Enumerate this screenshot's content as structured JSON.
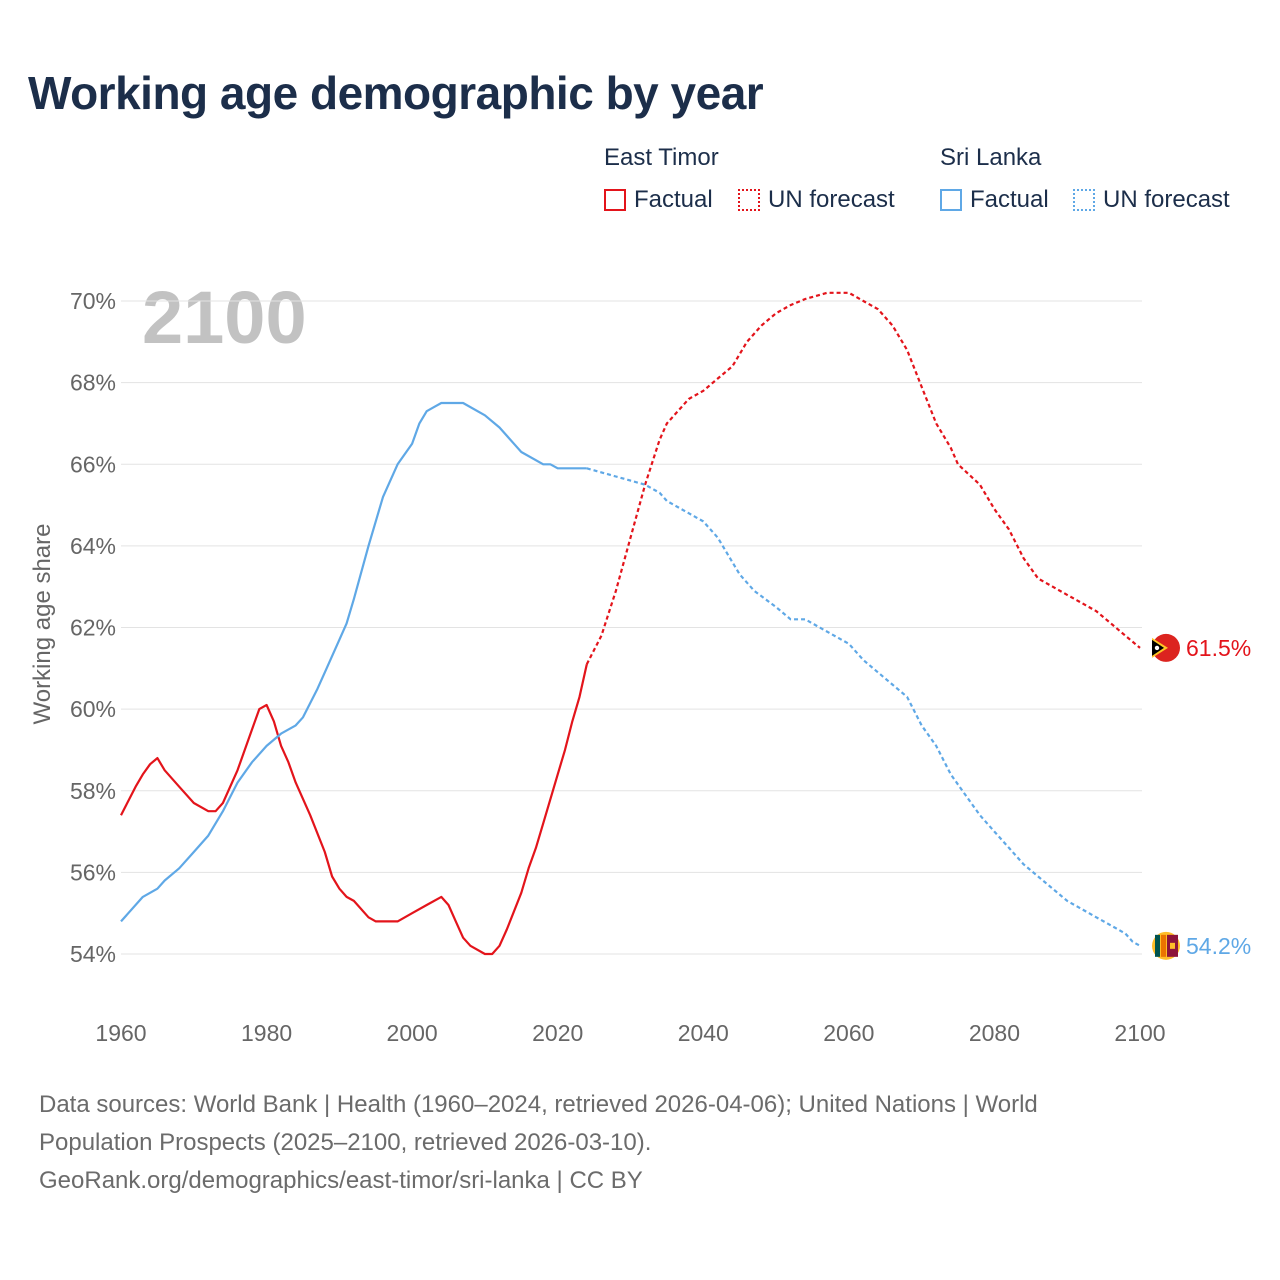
{
  "title": "Working age demographic by year",
  "legend": {
    "groups": [
      {
        "name": "East Timor",
        "color": "#e3141b",
        "factual_label": "Factual",
        "forecast_label": "UN forecast"
      },
      {
        "name": "Sri Lanka",
        "color": "#5fa8e6",
        "factual_label": "Factual",
        "forecast_label": "UN forecast"
      }
    ]
  },
  "footer": {
    "line1": "Data sources: World Bank | Health (1960–2024, retrieved 2026-04-06); United Nations | World",
    "line2": "Population Prospects (2025–2100, retrieved 2026-03-10).",
    "line3": "GeoRank.org/demographics/east-timor/sri-lanka | CC BY"
  },
  "chart_data": {
    "type": "line",
    "title": "Working age demographic by year",
    "year_watermark": "2100",
    "xlabel": "",
    "ylabel": "Working age share",
    "xlim": [
      1960,
      2100
    ],
    "ylim": [
      54,
      70
    ],
    "xticks": [
      1960,
      1980,
      2000,
      2020,
      2040,
      2060,
      2080,
      2100
    ],
    "yticks": [
      54,
      56,
      58,
      60,
      62,
      64,
      66,
      68,
      70
    ],
    "x_tick_labels": [
      "1960",
      "1980",
      "2000",
      "2020",
      "2040",
      "2060",
      "2080",
      "2100"
    ],
    "y_tick_labels": [
      "54%",
      "56%",
      "58%",
      "60%",
      "62%",
      "64%",
      "66%",
      "68%",
      "70%"
    ],
    "grid": true,
    "factual_until": 2024,
    "series": [
      {
        "name": "East Timor",
        "color": "#e3141b",
        "end_label": "61.5%",
        "points": [
          [
            1960,
            57.4
          ],
          [
            1962,
            58.1
          ],
          [
            1963,
            58.4
          ],
          [
            1964,
            58.65
          ],
          [
            1965,
            58.8
          ],
          [
            1966,
            58.5
          ],
          [
            1968,
            58.1
          ],
          [
            1970,
            57.7
          ],
          [
            1972,
            57.5
          ],
          [
            1973,
            57.5
          ],
          [
            1974,
            57.7
          ],
          [
            1976,
            58.5
          ],
          [
            1978,
            59.5
          ],
          [
            1979,
            60.0
          ],
          [
            1980,
            60.1
          ],
          [
            1981,
            59.7
          ],
          [
            1982,
            59.1
          ],
          [
            1983,
            58.7
          ],
          [
            1984,
            58.2
          ],
          [
            1986,
            57.4
          ],
          [
            1988,
            56.5
          ],
          [
            1989,
            55.9
          ],
          [
            1990,
            55.6
          ],
          [
            1991,
            55.4
          ],
          [
            1992,
            55.3
          ],
          [
            1994,
            54.9
          ],
          [
            1995,
            54.8
          ],
          [
            1998,
            54.8
          ],
          [
            2000,
            55.0
          ],
          [
            2002,
            55.2
          ],
          [
            2004,
            55.4
          ],
          [
            2005,
            55.2
          ],
          [
            2006,
            54.8
          ],
          [
            2007,
            54.4
          ],
          [
            2008,
            54.2
          ],
          [
            2010,
            54.0
          ],
          [
            2011,
            54.0
          ],
          [
            2012,
            54.2
          ],
          [
            2013,
            54.6
          ],
          [
            2015,
            55.5
          ],
          [
            2016,
            56.1
          ],
          [
            2017,
            56.6
          ],
          [
            2018,
            57.2
          ],
          [
            2020,
            58.4
          ],
          [
            2021,
            59.0
          ],
          [
            2022,
            59.7
          ],
          [
            2023,
            60.3
          ],
          [
            2024,
            61.1
          ],
          [
            2026,
            61.8
          ],
          [
            2028,
            62.9
          ],
          [
            2030,
            64.2
          ],
          [
            2032,
            65.5
          ],
          [
            2034,
            66.6
          ],
          [
            2035,
            67.0
          ],
          [
            2037,
            67.4
          ],
          [
            2038,
            67.6
          ],
          [
            2040,
            67.8
          ],
          [
            2042,
            68.1
          ],
          [
            2044,
            68.4
          ],
          [
            2046,
            69.0
          ],
          [
            2048,
            69.4
          ],
          [
            2050,
            69.7
          ],
          [
            2052,
            69.9
          ],
          [
            2054,
            70.05
          ],
          [
            2056,
            70.15
          ],
          [
            2057,
            70.2
          ],
          [
            2060,
            70.2
          ],
          [
            2062,
            70.0
          ],
          [
            2064,
            69.8
          ],
          [
            2066,
            69.4
          ],
          [
            2068,
            68.8
          ],
          [
            2070,
            67.9
          ],
          [
            2072,
            67.0
          ],
          [
            2074,
            66.4
          ],
          [
            2075,
            66.0
          ],
          [
            2078,
            65.5
          ],
          [
            2080,
            64.9
          ],
          [
            2082,
            64.4
          ],
          [
            2084,
            63.7
          ],
          [
            2086,
            63.2
          ],
          [
            2088,
            63.0
          ],
          [
            2090,
            62.8
          ],
          [
            2092,
            62.6
          ],
          [
            2094,
            62.4
          ],
          [
            2096,
            62.1
          ],
          [
            2098,
            61.8
          ],
          [
            2100,
            61.5
          ]
        ]
      },
      {
        "name": "Sri Lanka",
        "color": "#5fa8e6",
        "end_label": "54.2%",
        "points": [
          [
            1960,
            54.8
          ],
          [
            1963,
            55.4
          ],
          [
            1965,
            55.6
          ],
          [
            1966,
            55.8
          ],
          [
            1968,
            56.1
          ],
          [
            1970,
            56.5
          ],
          [
            1972,
            56.9
          ],
          [
            1974,
            57.5
          ],
          [
            1976,
            58.2
          ],
          [
            1978,
            58.7
          ],
          [
            1980,
            59.1
          ],
          [
            1982,
            59.4
          ],
          [
            1984,
            59.6
          ],
          [
            1985,
            59.8
          ],
          [
            1987,
            60.5
          ],
          [
            1988,
            60.9
          ],
          [
            1990,
            61.7
          ],
          [
            1991,
            62.1
          ],
          [
            1992,
            62.7
          ],
          [
            1994,
            64.0
          ],
          [
            1996,
            65.2
          ],
          [
            1998,
            66.0
          ],
          [
            2000,
            66.5
          ],
          [
            2001,
            67.0
          ],
          [
            2002,
            67.3
          ],
          [
            2003,
            67.4
          ],
          [
            2004,
            67.5
          ],
          [
            2007,
            67.5
          ],
          [
            2010,
            67.2
          ],
          [
            2012,
            66.9
          ],
          [
            2014,
            66.5
          ],
          [
            2015,
            66.3
          ],
          [
            2018,
            66.0
          ],
          [
            2019,
            66.0
          ],
          [
            2020,
            65.9
          ],
          [
            2024,
            65.9
          ],
          [
            2026,
            65.8
          ],
          [
            2028,
            65.7
          ],
          [
            2030,
            65.6
          ],
          [
            2032,
            65.5
          ],
          [
            2034,
            65.3
          ],
          [
            2035,
            65.1
          ],
          [
            2038,
            64.8
          ],
          [
            2040,
            64.6
          ],
          [
            2042,
            64.2
          ],
          [
            2044,
            63.6
          ],
          [
            2045,
            63.3
          ],
          [
            2047,
            62.9
          ],
          [
            2050,
            62.5
          ],
          [
            2052,
            62.2
          ],
          [
            2054,
            62.2
          ],
          [
            2056,
            62.0
          ],
          [
            2058,
            61.8
          ],
          [
            2060,
            61.6
          ],
          [
            2062,
            61.2
          ],
          [
            2064,
            60.9
          ],
          [
            2066,
            60.6
          ],
          [
            2068,
            60.3
          ],
          [
            2070,
            59.6
          ],
          [
            2072,
            59.1
          ],
          [
            2074,
            58.4
          ],
          [
            2076,
            57.9
          ],
          [
            2078,
            57.4
          ],
          [
            2080,
            57.0
          ],
          [
            2082,
            56.6
          ],
          [
            2084,
            56.2
          ],
          [
            2086,
            55.9
          ],
          [
            2088,
            55.6
          ],
          [
            2090,
            55.3
          ],
          [
            2092,
            55.1
          ],
          [
            2094,
            54.9
          ],
          [
            2096,
            54.7
          ],
          [
            2098,
            54.5
          ],
          [
            2099,
            54.3
          ],
          [
            2100,
            54.2
          ]
        ]
      }
    ]
  }
}
